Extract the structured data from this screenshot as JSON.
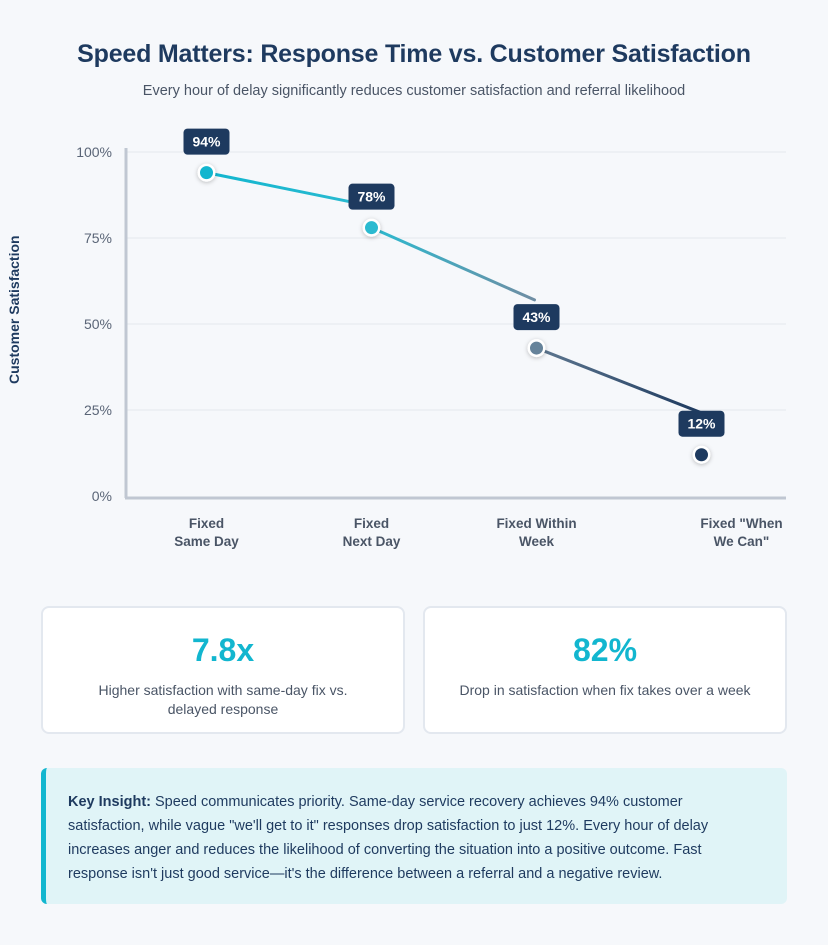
{
  "title": "Speed Matters: Response Time vs. Customer Satisfaction",
  "subtitle": "Every hour of delay significantly reduces customer satisfaction and referral likelihood",
  "chart_data": {
    "type": "line",
    "ylabel": "Customer Satisfaction",
    "xlabel": "",
    "categories": [
      [
        "Fixed",
        "Same Day"
      ],
      [
        "Fixed",
        "Next Day"
      ],
      [
        "Fixed Within",
        "Week"
      ],
      [
        "Fixed \"When",
        "We Can\""
      ]
    ],
    "values": [
      94,
      78,
      43,
      12
    ],
    "data_labels": [
      "94%",
      "78%",
      "43%",
      "12%"
    ],
    "y_ticks": [
      "0%",
      "25%",
      "50%",
      "75%",
      "100%"
    ],
    "ylim": [
      0,
      100
    ],
    "grid": true,
    "point_colors": [
      "#12b6cf",
      "#2bbad0",
      "#66839a",
      "#1e3a5f"
    ],
    "segment_colors": [
      [
        "#12b6cf",
        "#2bbad0"
      ],
      [
        "#2bbad0",
        "#6f8da3"
      ],
      [
        "#5f7890",
        "#1e3a5f"
      ]
    ]
  },
  "stats": [
    {
      "value": "7.8x",
      "label": "Higher satisfaction with same-day fix vs. delayed response"
    },
    {
      "value": "82%",
      "label": "Drop in satisfaction when fix takes over a week"
    }
  ],
  "insight": {
    "lead": "Key Insight:",
    "text": " Speed communicates priority. Same-day service recovery achieves 94% customer satisfaction, while vague \"we'll get to it\" responses drop satisfaction to just 12%. Every hour of delay increases anger and reduces the likelihood of converting the situation into a positive outcome. Fast response isn't just good service—it's the difference between a referral and a negative review."
  },
  "colors": {
    "accent": "#12b6cf",
    "navy": "#1e3a5f",
    "insight_bg": "#e0f4f7"
  }
}
